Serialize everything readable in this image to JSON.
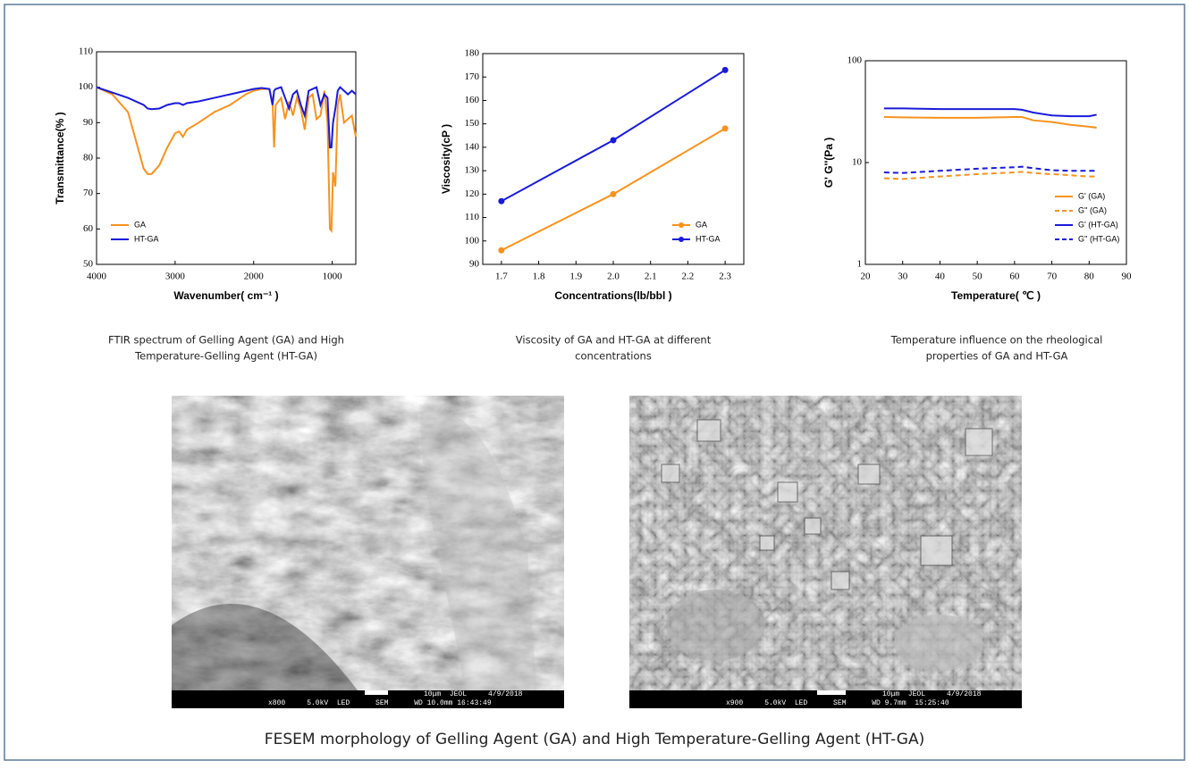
{
  "chart_data": [
    {
      "type": "line",
      "xlabel": "Wavenumber(  cm⁻¹ )",
      "ylabel": "Transmittance(% )",
      "caption": [
        "FTIR spectrum of Gelling Agent (GA)  and High",
        "Temperature-Gelling Agent (HT-GA)"
      ],
      "x": [
        4000,
        3800,
        3600,
        3500,
        3400,
        3350,
        3300,
        3200,
        3100,
        3000,
        2950,
        2900,
        2850,
        2700,
        2500,
        2300,
        2100,
        2000,
        1900,
        1800,
        1760,
        1740,
        1720,
        1650,
        1600,
        1550,
        1500,
        1450,
        1400,
        1350,
        1300,
        1250,
        1200,
        1150,
        1100,
        1060,
        1030,
        1010,
        990,
        960,
        930,
        900,
        850,
        800,
        750,
        700
      ],
      "series": [
        {
          "name": "GA",
          "color": "#f7931e",
          "values": [
            100,
            98,
            93,
            85,
            77,
            75.5,
            75.5,
            78,
            83,
            87,
            87.5,
            86,
            88,
            90,
            93,
            95,
            98,
            99,
            99.5,
            99.5,
            96,
            83,
            95,
            97,
            91,
            96,
            92,
            97,
            94,
            88,
            97,
            98,
            91,
            92,
            99,
            90,
            60,
            59.5,
            76,
            72,
            95,
            98,
            90,
            91,
            92,
            86
          ]
        },
        {
          "name": "HT-GA",
          "color": "#1a1adb",
          "values": [
            100,
            98.5,
            97,
            96,
            95,
            94,
            93.8,
            94,
            95,
            95.5,
            95.5,
            95,
            95.5,
            96,
            97,
            98,
            99,
            99.5,
            99.8,
            99.5,
            95,
            99,
            99.5,
            100,
            97,
            94,
            98,
            99,
            95,
            92,
            99,
            99.5,
            100,
            95,
            98,
            97,
            83,
            83,
            90,
            94,
            99,
            100,
            99,
            98,
            99,
            98
          ]
        }
      ],
      "xlim": [
        4000,
        700
      ],
      "xticks": [
        4000,
        3000,
        2000,
        1000
      ],
      "ylim": [
        50,
        110
      ],
      "yticks": [
        50,
        60,
        70,
        80,
        90,
        100,
        110
      ],
      "legend": "lower left",
      "markers": false,
      "log_y": false
    },
    {
      "type": "line",
      "xlabel": "Concentrations(lb/bbl )",
      "ylabel": "Viscosity(cP )",
      "caption": [
        "Viscosity of GA and HT-GA at different",
        "concentrations"
      ],
      "x": [
        1.7,
        2.0,
        2.3
      ],
      "series": [
        {
          "name": "GA",
          "color": "#f7931e",
          "values": [
            96,
            120,
            148
          ]
        },
        {
          "name": "HT-GA",
          "color": "#1a1adb",
          "values": [
            117,
            143,
            173
          ]
        }
      ],
      "xlim": [
        1.65,
        2.35
      ],
      "xticks": [
        1.7,
        1.8,
        1.9,
        {
          "value": 2,
          "label": "2.0"
        },
        2.1,
        2.2,
        2.3
      ],
      "ylim": [
        90,
        180
      ],
      "yticks": [
        90,
        100,
        110,
        120,
        130,
        140,
        150,
        160,
        170,
        180
      ],
      "legend": "lower right",
      "markers": true,
      "log_y": false
    },
    {
      "type": "line",
      "xlabel": "Temperature(  ℃ )",
      "ylabel": "G' G''(Pa )",
      "caption": [
        "Temperature influence on the rheological",
        "properties of GA and HT-GA"
      ],
      "x": [
        25,
        30,
        40,
        50,
        60,
        62,
        65,
        70,
        75,
        80,
        82
      ],
      "series": [
        {
          "name": "G' (GA)",
          "color": "#f7931e",
          "dash": false,
          "values": [
            28,
            27.8,
            27.5,
            27.5,
            28,
            28,
            26,
            25,
            23.5,
            22.5,
            22
          ]
        },
        {
          "name": "G'' (GA)",
          "color": "#f7931e",
          "dash": true,
          "values": [
            7,
            6.9,
            7.3,
            7.7,
            8,
            8.1,
            7.9,
            7.7,
            7.5,
            7.3,
            7.3
          ]
        },
        {
          "name": "G' (HT-GA)",
          "color": "#1a1adb",
          "dash": false,
          "values": [
            34,
            34,
            33.5,
            33.5,
            33.5,
            33,
            31,
            29,
            28.5,
            28.5,
            29.5
          ]
        },
        {
          "name": "G'' (HT-GA)",
          "color": "#1a1adb",
          "dash": true,
          "values": [
            8,
            7.9,
            8.3,
            8.7,
            9,
            9.1,
            8.8,
            8.4,
            8.3,
            8.3,
            8.3
          ]
        }
      ],
      "xlim": [
        20,
        90
      ],
      "xticks": [
        20,
        30,
        40,
        50,
        60,
        70,
        80,
        90
      ],
      "ylim": [
        1,
        100
      ],
      "yticks": [
        1,
        10,
        100
      ],
      "legend": "lower right",
      "markers": false,
      "log_y": true
    }
  ],
  "images": [
    {
      "line1": "10μm  JEOL     4/9/2018",
      "line2": "x800     5.0kV  LED      SEM      WD 10.0mm 16:43:49"
    },
    {
      "line1": "10μm  JEOL     4/9/2018",
      "line2": "x900     5.0kV  LED      SEM      WD 9.7mm  15:25:40"
    }
  ],
  "caption": "FESEM morphology of Gelling Agent (GA)  and High Temperature-Gelling Agent (HT-GA)"
}
